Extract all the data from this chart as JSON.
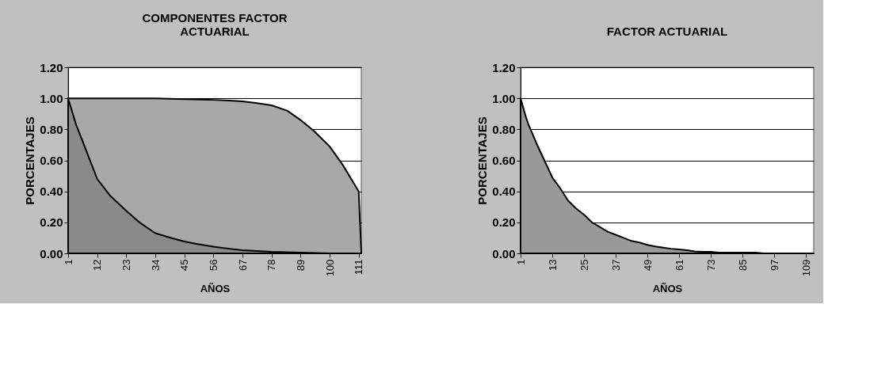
{
  "chart_data": [
    {
      "type": "area",
      "title": "COMPONENTES FACTOR ACTUARIAL",
      "xlabel": "AÑOS",
      "ylabel": "PORCENTAJES",
      "xlim": [
        1,
        112
      ],
      "xticks": [
        1,
        12,
        23,
        34,
        45,
        56,
        67,
        78,
        89,
        100,
        111
      ],
      "ylim": [
        0,
        1.2
      ],
      "yticks": [
        {
          "value": 0,
          "label": "0.00"
        },
        {
          "value": 0.2,
          "label": "0.20"
        },
        {
          "value": 0.4,
          "label": "0.40"
        },
        {
          "value": 0.6,
          "label": "0.60"
        },
        {
          "value": 0.8,
          "label": "0.80"
        },
        {
          "value": 1,
          "label": "1.00"
        },
        {
          "value": 1.2,
          "label": "1.20"
        }
      ],
      "grid": "y",
      "series": [
        {
          "color": "#a8a8a8",
          "x": [
            1,
            12,
            23,
            34,
            45,
            56,
            62,
            67,
            72,
            78,
            84,
            89,
            94,
            100,
            105,
            111,
            112
          ],
          "values": [
            1.0,
            1.0,
            1.0,
            1.0,
            0.995,
            0.99,
            0.985,
            0.98,
            0.97,
            0.955,
            0.92,
            0.86,
            0.79,
            0.69,
            0.57,
            0.4,
            0.0
          ]
        },
        {
          "color": "#8a8a8a",
          "x": [
            1,
            4,
            7,
            12,
            17,
            23,
            28,
            34,
            40,
            45,
            50,
            56,
            62,
            67,
            78,
            89,
            100,
            111
          ],
          "values": [
            1.0,
            0.83,
            0.7,
            0.48,
            0.37,
            0.275,
            0.2,
            0.13,
            0.1,
            0.077,
            0.06,
            0.043,
            0.03,
            0.02,
            0.01,
            0.005,
            0.0,
            0.0
          ]
        }
      ]
    },
    {
      "type": "area",
      "title": "FACTOR ACTUARIAL",
      "xlabel": "AÑOS",
      "ylabel": "PORCENTAJES",
      "xlim": [
        1,
        112
      ],
      "xticks": [
        1,
        13,
        25,
        37,
        49,
        61,
        73,
        85,
        97,
        109
      ],
      "ylim": [
        0,
        1.2
      ],
      "yticks": [
        {
          "value": 0,
          "label": "0.00"
        },
        {
          "value": 0.2,
          "label": "0.20"
        },
        {
          "value": 0.4,
          "label": "0.40"
        },
        {
          "value": 0.6,
          "label": "0.60"
        },
        {
          "value": 0.8,
          "label": "0.80"
        },
        {
          "value": 1,
          "label": "1.00"
        },
        {
          "value": 1.2,
          "label": "1.20"
        }
      ],
      "grid": "y",
      "series": [
        {
          "color": "#999999",
          "x": [
            1,
            3,
            4,
            7,
            10,
            13,
            16,
            19,
            22,
            25,
            28,
            31,
            34,
            37,
            40,
            43,
            46,
            49,
            52,
            55,
            58,
            61,
            64,
            67,
            70,
            73,
            76,
            80,
            85,
            90,
            93,
            100,
            112
          ],
          "values": [
            1.0,
            0.88,
            0.83,
            0.71,
            0.6,
            0.49,
            0.42,
            0.34,
            0.29,
            0.25,
            0.2,
            0.17,
            0.14,
            0.12,
            0.1,
            0.08,
            0.07,
            0.055,
            0.045,
            0.037,
            0.03,
            0.025,
            0.02,
            0.013,
            0.01,
            0.01,
            0.005,
            0.005,
            0.005,
            0.005,
            0.0,
            0.0,
            0.0
          ]
        }
      ]
    }
  ]
}
